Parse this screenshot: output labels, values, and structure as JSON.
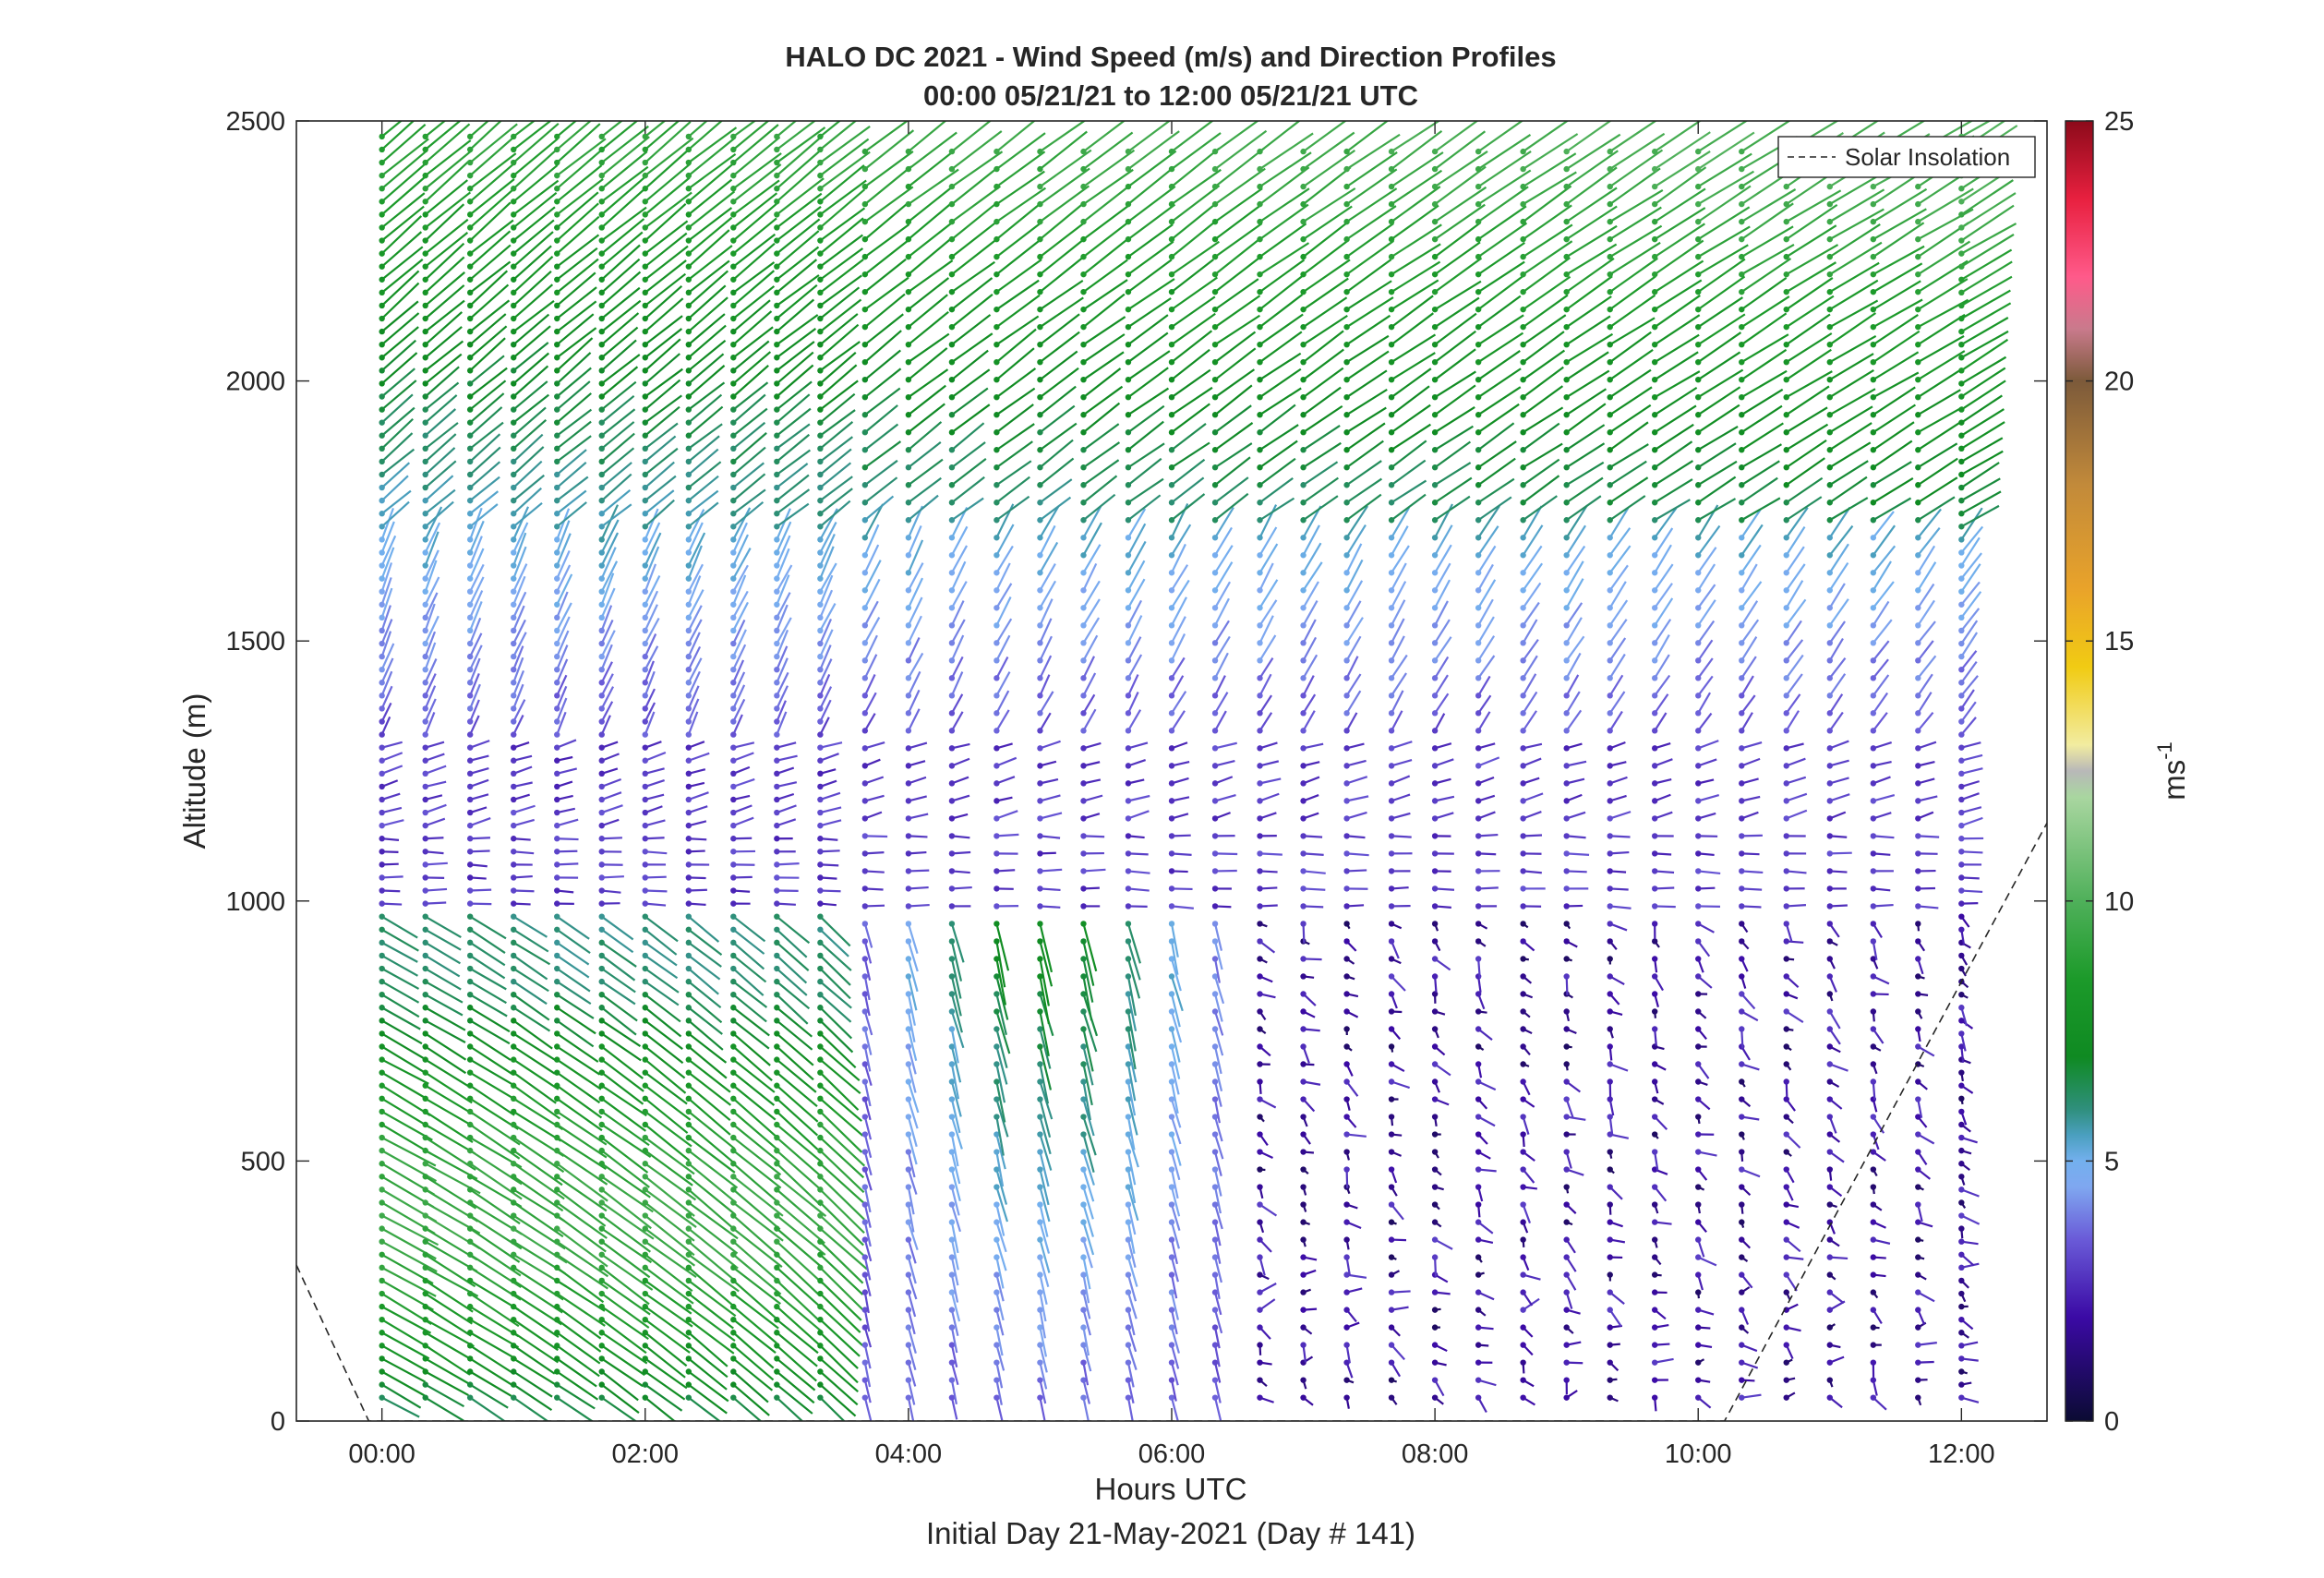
{
  "chart_data": {
    "type": "wind-barb-profile",
    "title": "HALO DC 2021 - Wind Speed (m/s) and Direction Profiles",
    "subtitle": "00:00 05/21/21 to 12:00 05/21/21  UTC",
    "xlabel": "Hours UTC",
    "xlabel2": "Initial Day 21-May-2021 (Day # 141)",
    "ylabel": "Altitude (m)",
    "colorbar_label": "ms",
    "colorbar_label_sup": "-1",
    "xlim": [
      -0.65,
      12.65
    ],
    "ylim": [
      0,
      2500
    ],
    "x_ticks": [
      0,
      2,
      4,
      6,
      8,
      10,
      12
    ],
    "x_tick_labels": [
      "00:00",
      "02:00",
      "04:00",
      "06:00",
      "08:00",
      "10:00",
      "12:00"
    ],
    "y_ticks": [
      0,
      500,
      1000,
      1500,
      2000,
      2500
    ],
    "y_tick_labels": [
      "0",
      "500",
      "1000",
      "1500",
      "2000",
      "2500"
    ],
    "colorbar_ticks": [
      0,
      5,
      10,
      15,
      20,
      25
    ],
    "colorbar_tick_labels": [
      "0",
      "5",
      "10",
      "15",
      "20",
      "25"
    ],
    "colorbar_range": [
      0,
      25
    ],
    "legend": {
      "entry": "Solar Insolation",
      "location": "top-right"
    },
    "profile_times_hours": [
      0.0,
      0.33,
      0.67,
      1.0,
      1.33,
      1.67,
      2.0,
      2.33,
      2.67,
      3.0,
      3.33,
      3.67,
      4.0,
      4.33,
      4.67,
      5.0,
      5.33,
      5.67,
      6.0,
      6.33,
      6.67,
      7.0,
      7.33,
      7.67,
      8.0,
      8.33,
      8.67,
      9.0,
      9.33,
      9.67,
      10.0,
      10.33,
      10.67,
      11.0,
      11.33,
      11.67,
      12.0
    ],
    "altitude_step_m": 25,
    "wind_regions": [
      {
        "alt_range": [
          0,
          950
        ],
        "time_range": [
          0,
          3.5
        ],
        "speed_ms": [
          6,
          9
        ],
        "direction": "northwest, down-right tails"
      },
      {
        "alt_range": [
          0,
          950
        ],
        "time_range": [
          3.5,
          6.5
        ],
        "speed_ms": [
          3,
          8
        ],
        "direction": "northerly"
      },
      {
        "alt_range": [
          0,
          950
        ],
        "time_range": [
          6.5,
          12
        ],
        "speed_ms": [
          0.5,
          3
        ],
        "direction": "variable, light"
      },
      {
        "alt_range": [
          950,
          1300
        ],
        "time_range": [
          0,
          12
        ],
        "speed_ms": [
          2,
          3.5
        ],
        "direction": "easterly / westerly shear"
      },
      {
        "alt_range": [
          1300,
          1700
        ],
        "time_range": [
          0,
          12
        ],
        "speed_ms": [
          3,
          5
        ],
        "direction": "southwesterly"
      },
      {
        "alt_range": [
          1700,
          2500
        ],
        "time_range": [
          0,
          12
        ],
        "speed_ms": [
          5,
          9
        ],
        "direction": "southwesterly"
      }
    ],
    "solar_insolation_line": [
      [
        -0.65,
        300
      ],
      [
        -0.1,
        0
      ],
      [
        10.2,
        0
      ],
      [
        12.65,
        1150
      ]
    ],
    "colormap": [
      {
        "v": 0,
        "c": "#0b0b33"
      },
      {
        "v": 2,
        "c": "#3b0aa5"
      },
      {
        "v": 3.5,
        "c": "#6a5bd8"
      },
      {
        "v": 4.5,
        "c": "#7fa7f0"
      },
      {
        "v": 5,
        "c": "#73b0ee"
      },
      {
        "v": 5.5,
        "c": "#4a9fbf"
      },
      {
        "v": 6,
        "c": "#2f8f7c"
      },
      {
        "v": 7,
        "c": "#0f8a22"
      },
      {
        "v": 8.5,
        "c": "#1c9a2a"
      },
      {
        "v": 10,
        "c": "#4fb05a"
      },
      {
        "v": 12,
        "c": "#a9d6a0"
      },
      {
        "v": 12.5,
        "c": "#b8b8b8"
      },
      {
        "v": 13,
        "c": "#f2eca0"
      },
      {
        "v": 14.5,
        "c": "#f1cb13"
      },
      {
        "v": 16,
        "c": "#e9a32a"
      },
      {
        "v": 18,
        "c": "#c28a3a"
      },
      {
        "v": 20,
        "c": "#7c5a3a"
      },
      {
        "v": 21,
        "c": "#c97a8c"
      },
      {
        "v": 22,
        "c": "#ff5a8a"
      },
      {
        "v": 23.5,
        "c": "#e8203f"
      },
      {
        "v": 25,
        "c": "#8c0a1a"
      }
    ]
  }
}
